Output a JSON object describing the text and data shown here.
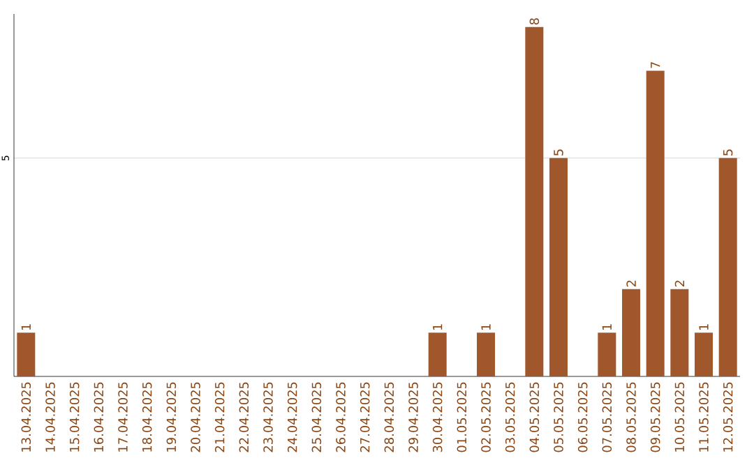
{
  "chart_data": {
    "type": "bar",
    "categories": [
      "13.04.2025",
      "14.04.2025",
      "15.04.2025",
      "16.04.2025",
      "17.04.2025",
      "18.04.2025",
      "19.04.2025",
      "20.04.2025",
      "21.04.2025",
      "22.04.2025",
      "23.04.2025",
      "24.04.2025",
      "25.04.2025",
      "26.04.2025",
      "27.04.2025",
      "28.04.2025",
      "29.04.2025",
      "30.04.2025",
      "01.05.2025",
      "02.05.2025",
      "03.05.2025",
      "04.05.2025",
      "05.05.2025",
      "06.05.2025",
      "07.05.2025",
      "08.05.2025",
      "09.05.2025",
      "10.05.2025",
      "11.05.2025",
      "12.05.2025"
    ],
    "values": [
      1,
      0,
      0,
      0,
      0,
      0,
      0,
      0,
      0,
      0,
      0,
      0,
      0,
      0,
      0,
      0,
      0,
      1,
      0,
      1,
      0,
      8,
      5,
      0,
      1,
      2,
      7,
      2,
      1,
      5
    ],
    "value_labels": [
      "1",
      null,
      null,
      null,
      null,
      null,
      null,
      null,
      null,
      null,
      null,
      null,
      null,
      null,
      null,
      null,
      null,
      "1",
      null,
      "1",
      null,
      "8",
      "5",
      null,
      "1",
      "2",
      "7",
      "2",
      "1",
      "5"
    ],
    "color": "#a0572b",
    "ylim": [
      0,
      8.3
    ],
    "yticks": [
      5
    ],
    "grid": "y"
  }
}
